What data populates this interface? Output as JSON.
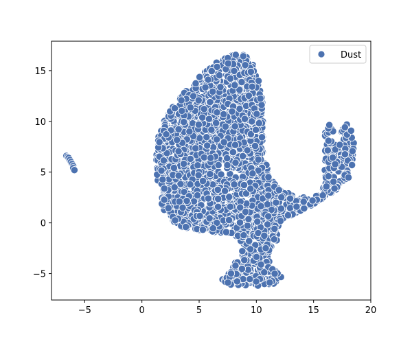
{
  "chart_data": {
    "type": "scatter",
    "title": "",
    "xlabel": "",
    "ylabel": "",
    "xlim": [
      -7.9,
      20
    ],
    "ylim": [
      -7.6,
      17.9
    ],
    "x_ticks": [
      -5,
      0,
      5,
      10,
      15,
      20
    ],
    "y_ticks": [
      -5,
      0,
      5,
      10,
      15
    ],
    "x_tick_labels": [
      "−5",
      "0",
      "5",
      "10",
      "15",
      "20"
    ],
    "y_tick_labels": [
      "−5",
      "0",
      "5",
      "10",
      "15"
    ],
    "grid": false,
    "legend": {
      "position": "top-right",
      "entries": [
        "Dust"
      ]
    },
    "series": [
      {
        "name": "Dust",
        "color": "#4c72b0",
        "edge_color": "#ffffff",
        "marker": "circle",
        "clusters": [
          {
            "description": "main body",
            "outline": [
              [
                1.2,
                5.5
              ],
              [
                1.4,
                8.5
              ],
              [
                2.1,
                10.5
              ],
              [
                3.2,
                12.2
              ],
              [
                4.5,
                13.8
              ],
              [
                5.8,
                15.2
              ],
              [
                7.0,
                16.2
              ],
              [
                8.2,
                16.8
              ],
              [
                9.3,
                16.4
              ],
              [
                10.0,
                15.0
              ],
              [
                10.5,
                12.5
              ],
              [
                10.6,
                10.0
              ],
              [
                10.6,
                7.0
              ],
              [
                11.2,
                4.5
              ],
              [
                12.2,
                3.2
              ],
              [
                13.5,
                2.6
              ],
              [
                15.0,
                2.4
              ],
              [
                15.8,
                3.5
              ],
              [
                16.0,
                6.0
              ],
              [
                16.0,
                9.0
              ],
              [
                16.4,
                9.8
              ],
              [
                17.0,
                8.3
              ],
              [
                17.9,
                9.8
              ],
              [
                18.5,
                8.7
              ],
              [
                18.6,
                6.5
              ],
              [
                18.1,
                4.5
              ],
              [
                16.7,
                3.0
              ],
              [
                15.0,
                1.8
              ],
              [
                13.5,
                1.0
              ],
              [
                12.0,
                0.0
              ],
              [
                11.8,
                -1.8
              ],
              [
                11.0,
                -3.0
              ],
              [
                11.5,
                -4.5
              ],
              [
                12.2,
                -5.3
              ],
              [
                11.5,
                -6.0
              ],
              [
                9.5,
                -6.3
              ],
              [
                7.5,
                -6.1
              ],
              [
                6.8,
                -5.8
              ],
              [
                7.8,
                -4.5
              ],
              [
                8.6,
                -3.2
              ],
              [
                8.6,
                -1.5
              ],
              [
                7.0,
                -1.0
              ],
              [
                5.0,
                -0.7
              ],
              [
                3.0,
                -0.3
              ],
              [
                1.8,
                1.2
              ]
            ],
            "holes": [
              [
                [
                  16.9,
                  8.0
                ],
                [
                  17.4,
                  9.0
                ],
                [
                  17.6,
                  7.6
                ]
              ],
              [
                [
                  16.4,
                  4.8
                ],
                [
                  16.9,
                  5.6
                ],
                [
                  17.2,
                  4.6
                ]
              ]
            ],
            "point_count": 2600
          },
          {
            "description": "small cluster",
            "points": [
              [
                -6.6,
                6.6
              ],
              [
                -6.5,
                6.5
              ],
              [
                -6.4,
                6.4
              ],
              [
                -6.3,
                6.2
              ],
              [
                -6.2,
                6.0
              ],
              [
                -6.1,
                5.8
              ],
              [
                -6.0,
                5.6
              ],
              [
                -6.0,
                5.4
              ],
              [
                -5.9,
                5.2
              ]
            ]
          }
        ]
      }
    ]
  }
}
